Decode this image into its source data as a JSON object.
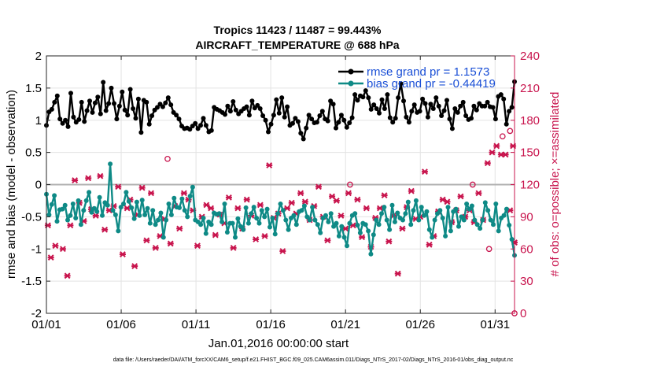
{
  "chart_data": {
    "type": "line",
    "title_line1": "Tropics 11423 / 11487 = 99.443%",
    "title_line2": "AIRCRAFT_TEMPERATURE @ 688 hPa",
    "xlabel": "Jan.01,2016 00:00:00 start",
    "ylabel_left": "rmse and bias (model - observation)",
    "ylabel_right": "# of obs: o=possible; ×=assimilated",
    "footer": "data file: /Users/raeder/DAI/ATM_forcXX/CAM6_setup/f.e21.FHIST_BGC.f09_025.CAM6assim.011/Diags_NTrS_2017-02/Diags_NTrS_2016-01/obs_diag_output.nc",
    "xlim": [
      0,
      31.3
    ],
    "x_ticks": [
      0,
      5,
      10,
      15,
      20,
      25,
      30
    ],
    "x_tick_labels": [
      "01/01",
      "01/06",
      "01/11",
      "01/16",
      "01/21",
      "01/26",
      "01/31"
    ],
    "ylim_left": [
      -2,
      2
    ],
    "y_left_ticks": [
      -2,
      -1.5,
      -1,
      -0.5,
      0,
      0.5,
      1,
      1.5,
      2
    ],
    "y_left_tick_labels": [
      "-2",
      "-1.5",
      "-1",
      "-0.5",
      "0",
      "0.5",
      "1",
      "1.5",
      "2"
    ],
    "ylim_right": [
      0,
      240
    ],
    "y_right_ticks": [
      0,
      30,
      60,
      90,
      120,
      150,
      180,
      210,
      240
    ],
    "y_right_tick_labels": [
      "0",
      "30",
      "60",
      "90",
      "120",
      "150",
      "180",
      "210",
      "240"
    ],
    "grid": true,
    "legend_position": "top-right",
    "rmse": {
      "name": "rmse grand pr = 1.1573",
      "color": "#000000",
      "values": [
        0.92,
        1.13,
        1.17,
        1.28,
        1.38,
        1.02,
        0.95,
        1.0,
        0.9,
        1.42,
        1.05,
        0.97,
        1.01,
        1.28,
        0.98,
        1.15,
        1.3,
        1.12,
        1.27,
        1.36,
        1.1,
        1.59,
        1.15,
        1.26,
        1.5,
        1.26,
        1.02,
        1.22,
        1.44,
        1.16,
        1.08,
        1.48,
        1.18,
        1.03,
        1.33,
        0.81,
        1.31,
        1.28,
        0.94,
        1.07,
        1.16,
        1.2,
        1.25,
        1.21,
        1.27,
        1.35,
        1.24,
        1.12,
        1.08,
        1.02,
        0.91,
        0.87,
        0.88,
        0.86,
        0.91,
        0.95,
        0.87,
        0.92,
        1.03,
        0.92,
        0.82,
        0.84,
        1.2,
        1.17,
        1.15,
        1.12,
        1.09,
        1.22,
        1.14,
        1.29,
        1.16,
        1.1,
        1.14,
        1.18,
        1.21,
        1.08,
        1.3,
        1.19,
        1.23,
        1.18,
        1.07,
        1.0,
        0.82,
        0.94,
        1.08,
        1.32,
        1.11,
        1.35,
        1.05,
        1.21,
        0.92,
        0.95,
        1.03,
        0.98,
        0.8,
        0.71,
        0.88,
        1.08,
        1.02,
        0.96,
        0.97,
        1.07,
        1.14,
        1.02,
        0.99,
        1.3,
        1.25,
        0.88,
        0.97,
        1.08,
        1.0,
        0.89,
        0.96,
        1.04,
        1.4,
        1.31,
        1.38,
        1.36,
        1.46,
        1.35,
        1.17,
        1.24,
        1.18,
        1.11,
        1.32,
        1.18,
        1.4,
        1.04,
        0.97,
        1.03,
        1.35,
        1.57,
        1.3,
        1.05,
        0.97,
        1.14,
        1.24,
        1.12,
        1.14,
        1.33,
        1.26,
        1.05,
        1.25,
        1.18,
        1.35,
        1.22,
        1.07,
        1.15,
        1.31,
        1.02,
        0.87,
        1.18,
        1.12,
        1.22,
        1.28,
        1.07,
        1.01,
        1.03,
        1.22,
        1.16,
        1.26,
        1.22,
        1.22,
        1.28,
        1.21,
        1.2,
        1.02,
        1.37,
        1.4,
        1.33,
        0.94,
        1.14,
        1.2,
        1.6
      ]
    },
    "bias": {
      "name": "bias grand pr = -0.44419",
      "color": "#0e8a86",
      "values": [
        -0.15,
        -0.47,
        -0.31,
        -0.17,
        -0.57,
        -0.39,
        -0.38,
        -0.32,
        -0.55,
        -0.48,
        -0.3,
        -0.52,
        -0.25,
        -0.62,
        -0.4,
        -0.25,
        -0.12,
        -0.43,
        -0.37,
        -0.42,
        -0.2,
        -0.48,
        -0.28,
        -0.32,
        0.32,
        -0.4,
        -0.47,
        -0.72,
        -0.35,
        -0.3,
        -0.12,
        -0.26,
        -0.36,
        -0.53,
        -0.27,
        -0.48,
        -0.24,
        -0.47,
        -0.37,
        -0.6,
        -0.4,
        -0.62,
        -0.55,
        -0.44,
        -0.82,
        -0.55,
        -0.3,
        -0.47,
        -0.21,
        -0.35,
        -0.36,
        -0.22,
        -0.4,
        -0.5,
        -0.18,
        -0.04,
        -0.55,
        -0.58,
        -0.62,
        -0.52,
        -0.76,
        -0.58,
        -0.62,
        -0.44,
        -0.46,
        -0.45,
        -0.58,
        -0.3,
        -0.74,
        -0.6,
        -0.6,
        -0.82,
        -0.53,
        -0.65,
        -0.7,
        -0.36,
        -0.6,
        -0.45,
        -0.35,
        -0.52,
        -0.6,
        -0.4,
        -0.5,
        -0.38,
        -0.66,
        -0.52,
        -0.77,
        -0.45,
        -0.3,
        -0.4,
        -0.55,
        -0.7,
        -0.52,
        -0.48,
        -0.62,
        -0.42,
        -0.4,
        -0.33,
        -0.5,
        -0.55,
        -0.35,
        -0.55,
        -0.62,
        -0.75,
        -0.52,
        -0.48,
        -0.58,
        -0.45,
        -0.65,
        -0.6,
        -0.8,
        -0.65,
        -0.82,
        -0.95,
        -0.6,
        -0.48,
        -0.45,
        -0.63,
        -0.75,
        -0.6,
        -0.62,
        -0.72,
        -1.08,
        -0.78,
        -0.55,
        -0.62,
        -0.45,
        -0.35,
        -0.55,
        -0.7,
        -0.32,
        -0.58,
        -0.44,
        -0.52,
        -0.55,
        -0.45,
        -0.27,
        -0.62,
        -0.4,
        -0.25,
        -0.55,
        -0.35,
        -0.48,
        -0.42,
        -0.7,
        -0.82,
        -0.55,
        -0.45,
        -0.4,
        -0.52,
        -0.8,
        -0.35,
        -0.72,
        -0.42,
        -0.38,
        -0.65,
        -0.5,
        -0.55,
        -0.3,
        -0.38,
        -0.33,
        -0.55,
        -0.62,
        -0.68,
        -0.55,
        -0.28,
        -0.4,
        -0.55,
        -0.62,
        -0.3,
        -0.72,
        -0.52,
        -0.48,
        -0.38,
        -0.63,
        -0.85,
        -1.1
      ]
    },
    "obs_possible": {
      "name": "possible",
      "marker": "o",
      "color": "#c8144d",
      "points": [
        [
          8.1,
          144
        ],
        [
          20.3,
          120
        ],
        [
          28.5,
          120
        ],
        [
          29.6,
          60
        ],
        [
          30.5,
          165
        ],
        [
          31.0,
          170
        ]
      ]
    },
    "obs_assimilated": {
      "name": "assimilated",
      "marker": "x",
      "color": "#c8144d",
      "points": [
        [
          0.1,
          82
        ],
        [
          0.3,
          52
        ],
        [
          0.6,
          63
        ],
        [
          1.1,
          60
        ],
        [
          1.4,
          35
        ],
        [
          1.6,
          82
        ],
        [
          1.9,
          124
        ],
        [
          2.2,
          103
        ],
        [
          2.5,
          86
        ],
        [
          2.8,
          126
        ],
        [
          3.0,
          97
        ],
        [
          3.3,
          91
        ],
        [
          3.6,
          128
        ],
        [
          3.9,
          78
        ],
        [
          4.2,
          96
        ],
        [
          4.5,
          100
        ],
        [
          4.8,
          118
        ],
        [
          5.1,
          55
        ],
        [
          5.4,
          98
        ],
        [
          5.6,
          106
        ],
        [
          5.9,
          44
        ],
        [
          6.1,
          92
        ],
        [
          6.4,
          117
        ],
        [
          6.7,
          68
        ],
        [
          7.0,
          112
        ],
        [
          7.3,
          61
        ],
        [
          7.6,
          72
        ],
        [
          7.9,
          88
        ],
        [
          8.3,
          65
        ],
        [
          8.6,
          100
        ],
        [
          8.9,
          79
        ],
        [
          9.2,
          112
        ],
        [
          9.5,
          106
        ],
        [
          9.8,
          96
        ],
        [
          10.1,
          63
        ],
        [
          10.4,
          90
        ],
        [
          10.7,
          101
        ],
        [
          11.0,
          98
        ],
        [
          11.3,
          73
        ],
        [
          11.6,
          92
        ],
        [
          11.9,
          84
        ],
        [
          12.2,
          108
        ],
        [
          12.5,
          61
        ],
        [
          12.8,
          98
        ],
        [
          13.1,
          79
        ],
        [
          13.4,
          106
        ],
        [
          13.7,
          91
        ],
        [
          14.0,
          69
        ],
        [
          14.3,
          101
        ],
        [
          14.6,
          72
        ],
        [
          14.9,
          138
        ],
        [
          15.2,
          89
        ],
        [
          15.5,
          93
        ],
        [
          15.8,
          58
        ],
        [
          16.1,
          98
        ],
        [
          16.4,
          103
        ],
        [
          16.7,
          93
        ],
        [
          17.0,
          112
        ],
        [
          17.3,
          104
        ],
        [
          17.6,
          87
        ],
        [
          17.9,
          100
        ],
        [
          18.2,
          118
        ],
        [
          18.5,
          90
        ],
        [
          18.8,
          68
        ],
        [
          19.1,
          109
        ],
        [
          19.4,
          105
        ],
        [
          19.7,
          91
        ],
        [
          20.0,
          79
        ],
        [
          20.2,
          112
        ],
        [
          20.5,
          82
        ],
        [
          20.8,
          106
        ],
        [
          21.1,
          71
        ],
        [
          21.4,
          98
        ],
        [
          21.7,
          62
        ],
        [
          22.0,
          89
        ],
        [
          22.3,
          98
        ],
        [
          22.6,
          110
        ],
        [
          22.9,
          67
        ],
        [
          23.2,
          91
        ],
        [
          23.5,
          37
        ],
        [
          23.8,
          79
        ],
        [
          24.1,
          99
        ],
        [
          24.4,
          114
        ],
        [
          24.7,
          88
        ],
        [
          25.0,
          90
        ],
        [
          25.3,
          132
        ],
        [
          25.6,
          64
        ],
        [
          25.9,
          72
        ],
        [
          26.2,
          95
        ],
        [
          26.5,
          106
        ],
        [
          26.8,
          104
        ],
        [
          27.1,
          85
        ],
        [
          27.4,
          96
        ],
        [
          27.7,
          109
        ],
        [
          28.0,
          90
        ],
        [
          28.3,
          96
        ],
        [
          28.6,
          85
        ],
        [
          28.9,
          112
        ],
        [
          29.2,
          87
        ],
        [
          29.5,
          140
        ],
        [
          29.8,
          150
        ],
        [
          30.1,
          156
        ],
        [
          30.4,
          148
        ],
        [
          30.7,
          148
        ],
        [
          31.0,
          96
        ],
        [
          31.2,
          156
        ],
        [
          31.3,
          66
        ]
      ]
    }
  }
}
